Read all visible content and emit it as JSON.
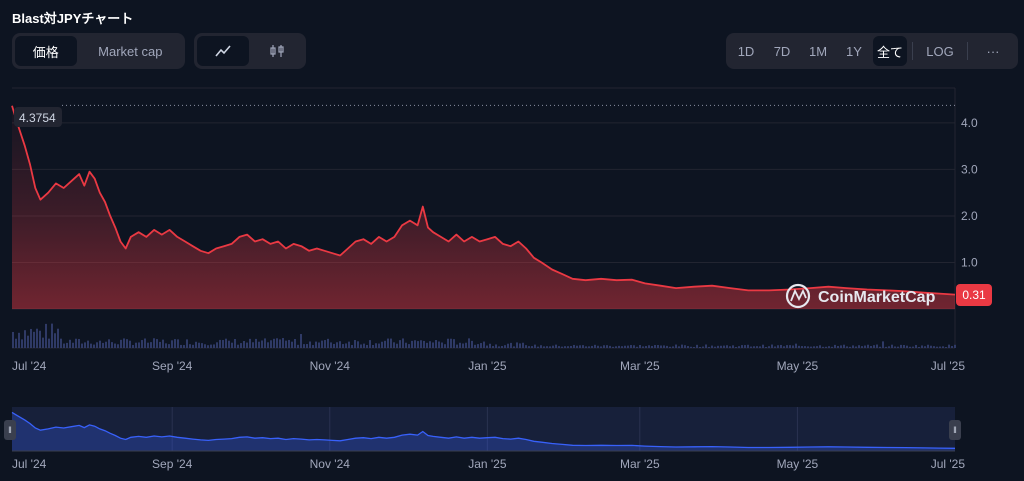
{
  "title": "Blast対JPYチャート",
  "toolbar": {
    "price_tab": "価格",
    "marketcap_tab": "Market cap",
    "line_icon": "line-chart-icon",
    "candle_icon": "candlestick-icon"
  },
  "ranges": [
    "1D",
    "7D",
    "1M",
    "1Y",
    "全て"
  ],
  "active_range": "全て",
  "log_label": "LOG",
  "more_label": "···",
  "watermark": "CoinMarketCap",
  "colors": {
    "line": "#ea3943",
    "nav_line": "#3861fb",
    "background": "#0d1421"
  },
  "chart_data": {
    "type": "line",
    "x_start": "2024-07-01",
    "x_end": "2025-07-01",
    "xticks": [
      "Jul '24",
      "Sep '24",
      "Nov '24",
      "Jan '25",
      "Mar '25",
      "May '25",
      "Jul '25"
    ],
    "yticks": [
      "1.0",
      "2.0",
      "3.0",
      "4.0"
    ],
    "ylim": [
      0,
      4.75
    ],
    "high_label": "4.3754",
    "high_value": 4.3754,
    "current_label": "0.31",
    "current_value": 0.31,
    "series": [
      {
        "points": [
          [
            "2024-07-01",
            4.37
          ],
          [
            "2024-07-03",
            4.0
          ],
          [
            "2024-07-06",
            3.5
          ],
          [
            "2024-07-08",
            3.1
          ],
          [
            "2024-07-10",
            2.6
          ],
          [
            "2024-07-12",
            2.35
          ],
          [
            "2024-07-15",
            2.5
          ],
          [
            "2024-07-18",
            2.7
          ],
          [
            "2024-07-21",
            2.6
          ],
          [
            "2024-07-24",
            2.75
          ],
          [
            "2024-07-27",
            2.9
          ],
          [
            "2024-07-29",
            2.65
          ],
          [
            "2024-07-31",
            2.95
          ],
          [
            "2024-08-02",
            2.8
          ],
          [
            "2024-08-04",
            2.5
          ],
          [
            "2024-08-06",
            2.3
          ],
          [
            "2024-08-08",
            2.0
          ],
          [
            "2024-08-10",
            1.75
          ],
          [
            "2024-08-12",
            1.45
          ],
          [
            "2024-08-14",
            1.3
          ],
          [
            "2024-08-16",
            1.55
          ],
          [
            "2024-08-19",
            1.65
          ],
          [
            "2024-08-22",
            1.55
          ],
          [
            "2024-08-25",
            1.7
          ],
          [
            "2024-08-28",
            1.6
          ],
          [
            "2024-08-31",
            1.7
          ],
          [
            "2024-09-03",
            1.55
          ],
          [
            "2024-09-06",
            1.45
          ],
          [
            "2024-09-09",
            1.35
          ],
          [
            "2024-09-12",
            1.25
          ],
          [
            "2024-09-15",
            1.2
          ],
          [
            "2024-09-18",
            1.3
          ],
          [
            "2024-09-21",
            1.35
          ],
          [
            "2024-09-24",
            1.4
          ],
          [
            "2024-09-27",
            1.55
          ],
          [
            "2024-09-30",
            1.6
          ],
          [
            "2024-10-03",
            1.45
          ],
          [
            "2024-10-06",
            1.5
          ],
          [
            "2024-10-09",
            1.4
          ],
          [
            "2024-10-12",
            1.45
          ],
          [
            "2024-10-15",
            1.3
          ],
          [
            "2024-10-18",
            1.4
          ],
          [
            "2024-10-21",
            1.35
          ],
          [
            "2024-10-24",
            1.25
          ],
          [
            "2024-10-27",
            1.3
          ],
          [
            "2024-10-30",
            1.25
          ],
          [
            "2024-11-02",
            1.2
          ],
          [
            "2024-11-05",
            1.15
          ],
          [
            "2024-11-08",
            1.3
          ],
          [
            "2024-11-11",
            1.45
          ],
          [
            "2024-11-14",
            1.5
          ],
          [
            "2024-11-17",
            1.4
          ],
          [
            "2024-11-20",
            1.55
          ],
          [
            "2024-11-23",
            1.45
          ],
          [
            "2024-11-26",
            1.55
          ],
          [
            "2024-11-29",
            1.8
          ],
          [
            "2024-12-02",
            1.9
          ],
          [
            "2024-12-05",
            1.8
          ],
          [
            "2024-12-07",
            2.2
          ],
          [
            "2024-12-09",
            1.75
          ],
          [
            "2024-12-11",
            1.65
          ],
          [
            "2024-12-14",
            1.55
          ],
          [
            "2024-12-17",
            1.45
          ],
          [
            "2024-12-20",
            1.6
          ],
          [
            "2024-12-23",
            1.45
          ],
          [
            "2024-12-26",
            1.55
          ],
          [
            "2024-12-29",
            1.45
          ],
          [
            "2025-01-01",
            1.5
          ],
          [
            "2025-01-04",
            1.55
          ],
          [
            "2025-01-07",
            1.4
          ],
          [
            "2025-01-10",
            1.35
          ],
          [
            "2025-01-13",
            1.45
          ],
          [
            "2025-01-16",
            1.3
          ],
          [
            "2025-01-19",
            1.1
          ],
          [
            "2025-01-22",
            1.0
          ],
          [
            "2025-01-26",
            0.85
          ],
          [
            "2025-01-30",
            0.75
          ],
          [
            "2025-02-03",
            0.65
          ],
          [
            "2025-02-08",
            0.62
          ],
          [
            "2025-02-14",
            0.65
          ],
          [
            "2025-02-20",
            0.62
          ],
          [
            "2025-02-26",
            0.63
          ],
          [
            "2025-03-03",
            0.55
          ],
          [
            "2025-03-09",
            0.5
          ],
          [
            "2025-03-15",
            0.45
          ],
          [
            "2025-03-22",
            0.48
          ],
          [
            "2025-03-29",
            0.5
          ],
          [
            "2025-04-05",
            0.45
          ],
          [
            "2025-04-12",
            0.4
          ],
          [
            "2025-04-20",
            0.4
          ],
          [
            "2025-04-28",
            0.42
          ],
          [
            "2025-05-06",
            0.45
          ],
          [
            "2025-05-13",
            0.48
          ],
          [
            "2025-05-20",
            0.45
          ],
          [
            "2025-05-28",
            0.42
          ],
          [
            "2025-06-05",
            0.4
          ],
          [
            "2025-06-12",
            0.38
          ],
          [
            "2025-06-19",
            0.35
          ],
          [
            "2025-06-25",
            0.33
          ],
          [
            "2025-07-01",
            0.31
          ]
        ]
      }
    ]
  }
}
